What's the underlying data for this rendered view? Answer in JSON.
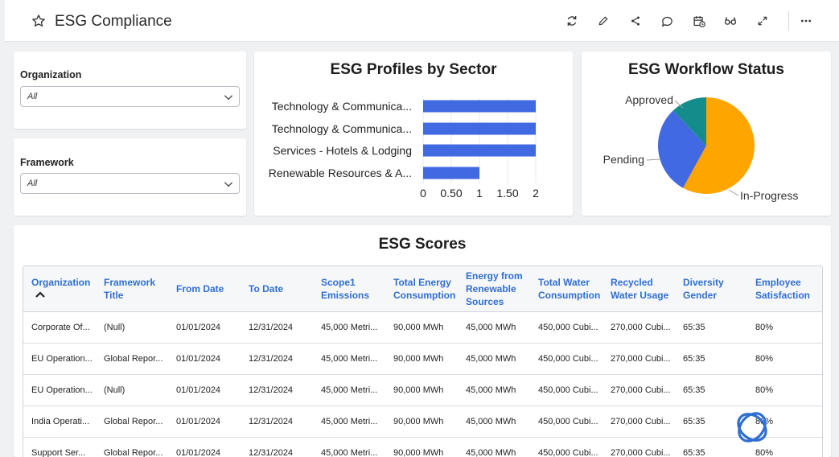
{
  "header": {
    "title": "ESG Compliance",
    "icons": [
      "star-icon",
      "refresh-icon",
      "edit-icon",
      "share-icon",
      "comment-icon",
      "schedule-icon",
      "view-icon",
      "expand-icon",
      "more-icon"
    ]
  },
  "filters": {
    "organization": {
      "label": "Organization",
      "value": "All"
    },
    "framework": {
      "label": "Framework",
      "value": "All"
    }
  },
  "sector_chart": {
    "title": "ESG Profiles by Sector",
    "chart_data": {
      "type": "bar",
      "orientation": "horizontal",
      "categories": [
        "Technology & Communica...",
        "Technology & Communica...",
        "Services - Hotels & Lodging",
        "Renewable Resources & A..."
      ],
      "values": [
        2,
        2,
        2,
        1
      ],
      "xlim": [
        0,
        2
      ],
      "ticks": [
        "0",
        "0.50",
        "1",
        "1.50",
        "2"
      ],
      "color": "#4169e1"
    }
  },
  "workflow_chart": {
    "title": "ESG Workflow Status",
    "chart_data": {
      "type": "pie",
      "slices": [
        {
          "label": "In-Progress",
          "value": 58,
          "color": "#ffa500"
        },
        {
          "label": "Pending",
          "value": 30,
          "color": "#4169e1"
        },
        {
          "label": "Approved",
          "value": 12,
          "color": "#148c8c"
        }
      ]
    }
  },
  "scores": {
    "title": "ESG Scores",
    "columns": [
      [
        "Organization"
      ],
      [
        "Framework",
        "Title"
      ],
      [
        "From Date"
      ],
      [
        "To Date"
      ],
      [
        "Scope1",
        "Emissions"
      ],
      [
        "Total Energy",
        "Consumption"
      ],
      [
        "Energy from",
        "Renewable",
        "Sources"
      ],
      [
        "Total Water",
        "Consumption"
      ],
      [
        "Recycled",
        "Water Usage"
      ],
      [
        "Diversity",
        "Gender"
      ],
      [
        "Employee",
        "Satisfaction"
      ]
    ],
    "rows": [
      [
        "Corporate Of...",
        "(Null)",
        "01/01/2024",
        "12/31/2024",
        "45,000 Metri...",
        "90,000 MWh",
        "45,000 MWh",
        "450,000 Cubi...",
        "270,000 Cubi...",
        "65:35",
        "80%"
      ],
      [
        "EU Operation...",
        "Global Repor...",
        "01/01/2024",
        "12/31/2024",
        "45,000 Metri...",
        "90,000 MWh",
        "45,000 MWh",
        "450,000 Cubi...",
        "270,000 Cubi...",
        "65:35",
        "80%"
      ],
      [
        "EU Operation...",
        "(Null)",
        "01/01/2024",
        "12/31/2024",
        "45,000 Metri...",
        "90,000 MWh",
        "45,000 MWh",
        "450,000 Cubi...",
        "270,000 Cubi...",
        "65:35",
        "80%"
      ],
      [
        "India Operati...",
        "Global Repor...",
        "01/01/2024",
        "12/31/2024",
        "45,000 Metri...",
        "90,000 MWh",
        "45,000 MWh",
        "450,000 Cubi...",
        "270,000 Cubi...",
        "65:35",
        "80%"
      ],
      [
        "Support Ser...",
        "Global Repor...",
        "01/01/2024",
        "12/31/2024",
        "45,000 Metri...",
        "90,000 MWh",
        "45,000 MWh",
        "450,000 Cubi...",
        "270,000 Cubi...",
        "65:35",
        "80%"
      ]
    ]
  }
}
